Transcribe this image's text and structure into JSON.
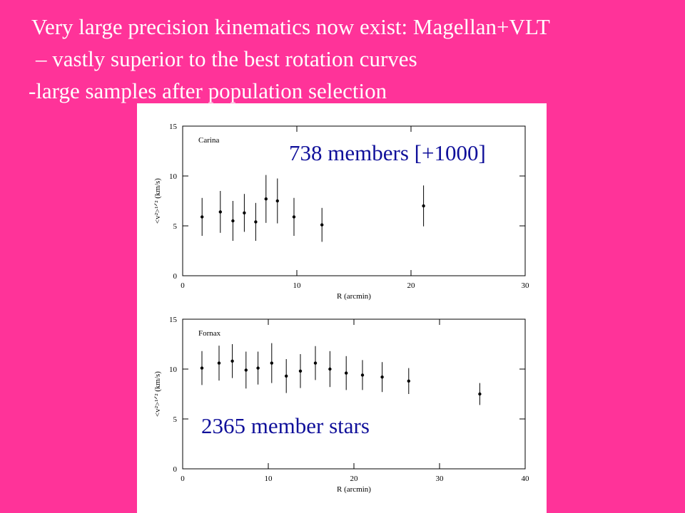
{
  "slide": {
    "lines": [
      "Very large precision kinematics now exist: Magellan+VLT",
      "–  vastly superior to the best rotation curves",
      "-large samples after population selection"
    ]
  },
  "chart_data": [
    {
      "type": "scatter",
      "label": "Carina",
      "annotation": "738 members [+1000]",
      "annotation_color": "#10109a",
      "xlabel": "R (arcmin)",
      "ylabel": "<v²>¹ᐟ² (km/s)",
      "xlim": [
        0,
        30
      ],
      "xticks": [
        0,
        10,
        20,
        30
      ],
      "ylim": [
        0,
        15
      ],
      "yticks": [
        0,
        5,
        10,
        15
      ],
      "color": "#000000",
      "x": [
        1.7,
        3.3,
        4.4,
        5.4,
        6.4,
        7.3,
        8.3,
        9.75,
        12.2,
        21.1
      ],
      "values": [
        5.9,
        6.4,
        5.5,
        6.3,
        5.4,
        7.7,
        7.5,
        5.9,
        5.1,
        7.0
      ],
      "errors": [
        1.9,
        2.1,
        2.0,
        1.9,
        1.9,
        2.4,
        2.25,
        1.9,
        1.7,
        2.05
      ]
    },
    {
      "type": "scatter",
      "label": "Fornax",
      "annotation": "2365 member stars",
      "annotation_color": "#10109a",
      "xlabel": "R (arcmin)",
      "ylabel": "<v²>¹ᐟ² (km/s)",
      "xlim": [
        0,
        40
      ],
      "xticks": [
        0,
        10,
        20,
        30,
        40
      ],
      "ylim": [
        0,
        15
      ],
      "yticks": [
        0,
        5,
        10,
        15
      ],
      "color": "#000000",
      "x": [
        2.25,
        4.25,
        5.8,
        7.4,
        8.8,
        10.4,
        12.1,
        13.75,
        15.5,
        17.2,
        19.1,
        21.0,
        23.3,
        26.4,
        34.7
      ],
      "values": [
        10.1,
        10.6,
        10.8,
        9.9,
        10.1,
        10.6,
        9.3,
        9.8,
        10.6,
        10.0,
        9.6,
        9.4,
        9.2,
        8.8,
        7.5
      ],
      "errors": [
        1.7,
        1.75,
        1.7,
        1.85,
        1.65,
        2.0,
        1.7,
        1.7,
        1.7,
        1.8,
        1.7,
        1.5,
        1.5,
        1.3,
        1.1
      ]
    }
  ]
}
